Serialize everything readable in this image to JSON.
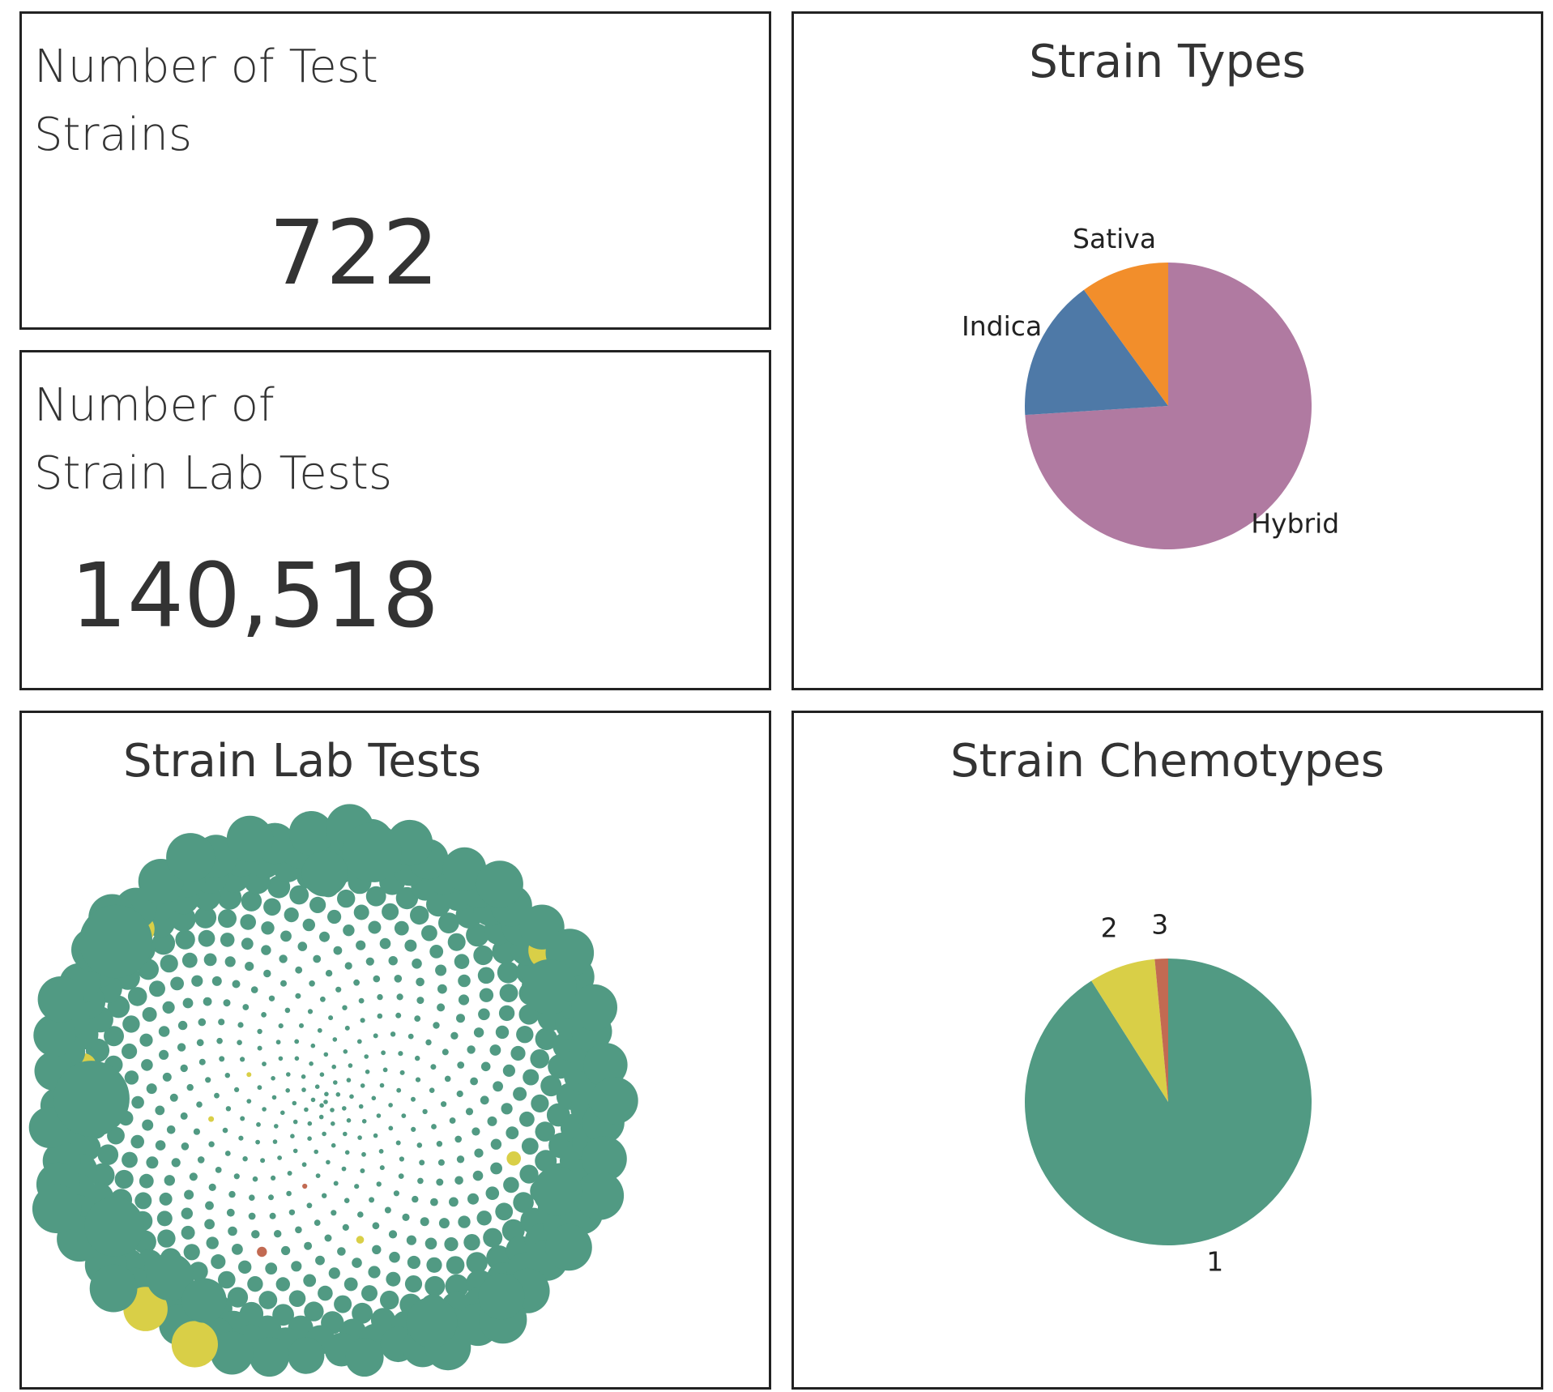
{
  "kpis": {
    "strains": {
      "title_line1": "Number of Test",
      "title_line2": "Strains",
      "value": "722"
    },
    "tests": {
      "title_line1": "Number of",
      "title_line2": "Strain Lab Tests",
      "value": "140,518"
    }
  },
  "chart_data": [
    {
      "type": "pie",
      "title": "Strain Types",
      "categories": [
        "Hybrid",
        "Indica",
        "Sativa"
      ],
      "values": [
        74.0,
        16.0,
        10.0
      ],
      "colors": [
        "#b07aa1",
        "#4e79a7",
        "#f28e2b"
      ],
      "legend": "none"
    },
    {
      "type": "bubble",
      "title": "Strain Lab Tests",
      "color_by": "chemotype",
      "chemotype_colors": {
        "1": "#519a83",
        "2": "#d9cf47",
        "3": "#c26a52"
      }
    },
    {
      "type": "pie",
      "title": "Strain Chemotypes",
      "categories": [
        "1",
        "2",
        "3"
      ],
      "values": [
        91.0,
        7.5,
        1.5
      ],
      "colors": [
        "#519a83",
        "#d9cf47",
        "#c26a52"
      ],
      "legend": "none"
    }
  ]
}
